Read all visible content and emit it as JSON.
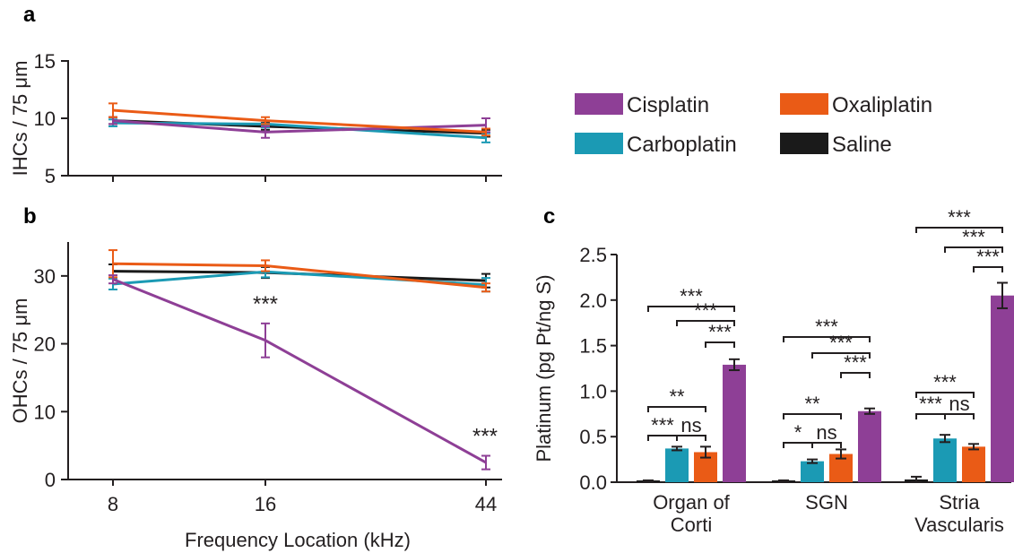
{
  "colors": {
    "Cisplatin": "#8e3f96",
    "Oxaliplatin": "#ea5b16",
    "Carboplatin": "#1b9ab4",
    "Saline": "#1a1a1a"
  },
  "legend": [
    "Cisplatin",
    "Oxaliplatin",
    "Carboplatin",
    "Saline"
  ],
  "chart_data": [
    {
      "panel": "a",
      "type": "line",
      "ylabel": "IHCs / 75 μm",
      "xlabel": "",
      "ylim": [
        5,
        15
      ],
      "yticks": [
        "5",
        "10",
        "15"
      ],
      "x": [
        8,
        16,
        44
      ],
      "series": [
        {
          "name": "Saline",
          "values": [
            9.8,
            9.3,
            8.7
          ],
          "err": [
            0.3,
            0.3,
            0.3
          ]
        },
        {
          "name": "Carboplatin",
          "values": [
            9.6,
            9.5,
            8.3
          ],
          "err": [
            0.3,
            0.3,
            0.4
          ]
        },
        {
          "name": "Cisplatin",
          "values": [
            9.8,
            8.8,
            9.4
          ],
          "err": [
            0.3,
            0.5,
            0.6
          ]
        },
        {
          "name": "Oxaliplatin",
          "values": [
            10.7,
            9.8,
            8.8
          ],
          "err": [
            0.6,
            0.3,
            0.3
          ]
        }
      ]
    },
    {
      "panel": "b",
      "type": "line",
      "ylabel": "OHCs / 75 μm",
      "xlabel": "Frequency Location (kHz)",
      "ylim": [
        0,
        35
      ],
      "yticks": [
        "0",
        "10",
        "20",
        "30"
      ],
      "x": [
        8,
        16,
        44
      ],
      "xticks": [
        "8",
        "16",
        "44"
      ],
      "series": [
        {
          "name": "Saline",
          "values": [
            30.7,
            30.5,
            29.3
          ],
          "err": [
            1.0,
            0.8,
            1.0
          ]
        },
        {
          "name": "Carboplatin",
          "values": [
            28.8,
            30.6,
            28.7
          ],
          "err": [
            0.8,
            0.8,
            1.0
          ]
        },
        {
          "name": "Oxaliplatin",
          "values": [
            31.8,
            31.5,
            28.3
          ],
          "err": [
            2.0,
            0.8,
            0.6
          ]
        },
        {
          "name": "Cisplatin",
          "values": [
            29.5,
            20.5,
            2.5
          ],
          "err": [
            0.6,
            2.5,
            1.0
          ]
        }
      ],
      "annotations": [
        {
          "x": 16,
          "text": "***"
        },
        {
          "x": 44,
          "text": "***"
        }
      ]
    },
    {
      "panel": "c",
      "type": "bar",
      "ylabel": "Platinum (pg Pt/ng S)",
      "ylim": [
        0,
        2.5
      ],
      "yticks": [
        "0.0",
        "0.5",
        "1.0",
        "1.5",
        "2.0",
        "2.5"
      ],
      "categories": [
        "Organ of Corti",
        "SGN",
        "Stria Vascularis"
      ],
      "category_lines": [
        [
          "Organ of",
          "Corti"
        ],
        [
          "SGN"
        ],
        [
          "Stria",
          "Vascularis"
        ]
      ],
      "series": [
        {
          "name": "Saline",
          "values": [
            0.01,
            0.01,
            0.03
          ],
          "err": [
            0.01,
            0.01,
            0.03
          ]
        },
        {
          "name": "Carboplatin",
          "values": [
            0.37,
            0.23,
            0.48
          ],
          "err": [
            0.02,
            0.02,
            0.04
          ]
        },
        {
          "name": "Oxaliplatin",
          "values": [
            0.33,
            0.31,
            0.39
          ],
          "err": [
            0.06,
            0.05,
            0.03
          ]
        },
        {
          "name": "Cisplatin",
          "values": [
            1.29,
            0.78,
            2.05
          ],
          "err": [
            0.06,
            0.03,
            0.14
          ]
        }
      ],
      "significance": [
        {
          "category": 0,
          "pair": [
            "Saline",
            "Carboplatin"
          ],
          "text": "***"
        },
        {
          "category": 0,
          "pair": [
            "Carboplatin",
            "Oxaliplatin"
          ],
          "text": "ns"
        },
        {
          "category": 0,
          "pair": [
            "Saline",
            "Oxaliplatin"
          ],
          "text": "**"
        },
        {
          "category": 0,
          "pair": [
            "Oxaliplatin",
            "Cisplatin"
          ],
          "text": "***"
        },
        {
          "category": 0,
          "pair": [
            "Carboplatin",
            "Cisplatin"
          ],
          "text": "***"
        },
        {
          "category": 0,
          "pair": [
            "Saline",
            "Cisplatin"
          ],
          "text": "***"
        },
        {
          "category": 1,
          "pair": [
            "Saline",
            "Carboplatin"
          ],
          "text": "*"
        },
        {
          "category": 1,
          "pair": [
            "Carboplatin",
            "Oxaliplatin"
          ],
          "text": "ns"
        },
        {
          "category": 1,
          "pair": [
            "Saline",
            "Oxaliplatin"
          ],
          "text": "**"
        },
        {
          "category": 1,
          "pair": [
            "Oxaliplatin",
            "Cisplatin"
          ],
          "text": "***"
        },
        {
          "category": 1,
          "pair": [
            "Carboplatin",
            "Cisplatin"
          ],
          "text": "***"
        },
        {
          "category": 1,
          "pair": [
            "Saline",
            "Cisplatin"
          ],
          "text": "***"
        },
        {
          "category": 2,
          "pair": [
            "Saline",
            "Carboplatin"
          ],
          "text": "***"
        },
        {
          "category": 2,
          "pair": [
            "Carboplatin",
            "Oxaliplatin"
          ],
          "text": "ns"
        },
        {
          "category": 2,
          "pair": [
            "Saline",
            "Oxaliplatin"
          ],
          "text": "***"
        },
        {
          "category": 2,
          "pair": [
            "Oxaliplatin",
            "Cisplatin"
          ],
          "text": "***"
        },
        {
          "category": 2,
          "pair": [
            "Carboplatin",
            "Cisplatin"
          ],
          "text": "***"
        },
        {
          "category": 2,
          "pair": [
            "Saline",
            "Cisplatin"
          ],
          "text": "***"
        }
      ]
    }
  ]
}
